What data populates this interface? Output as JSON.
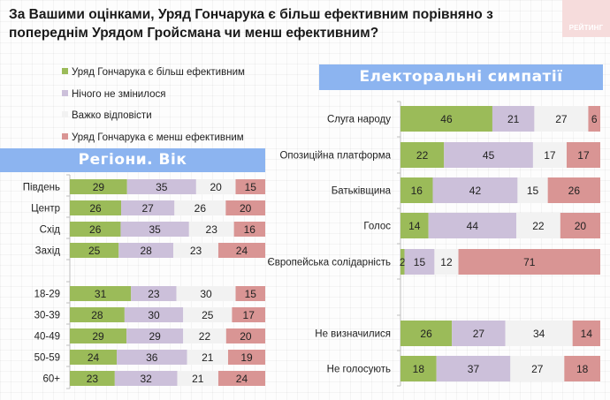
{
  "title": "За Вашими оцінками, Уряд Гончарука є більш ефективним порівняно з попереднім Урядом Гройсмана чи менш ефективним?",
  "logo": {
    "text": "РЕЙТИНГ",
    "icon": "rating-logo-icon"
  },
  "legend": [
    {
      "label": "Уряд Гончарука є більш ефективним",
      "color": "#9bbb59"
    },
    {
      "label": "Нічого не змінилося",
      "color": "#ccc0da"
    },
    {
      "label": "Важко відповісти",
      "color": "#f2f2f2"
    },
    {
      "label": "Уряд Гончарука є менш ефективним",
      "color": "#d99594"
    }
  ],
  "chart_data": [
    {
      "type": "bar",
      "orientation": "horizontal-stacked-100",
      "title": "Регіони. Вік",
      "categories": [
        "Південь",
        "Центр",
        "Схід",
        "Захід",
        "",
        "18-29",
        "30-39",
        "40-49",
        "50-59",
        "60+"
      ],
      "series": [
        {
          "name": "Уряд Гончарука є більш ефективним",
          "values": [
            29,
            26,
            26,
            25,
            null,
            31,
            28,
            29,
            24,
            23
          ]
        },
        {
          "name": "Нічого не змінилося",
          "values": [
            35,
            27,
            35,
            28,
            null,
            23,
            30,
            29,
            36,
            32
          ]
        },
        {
          "name": "Важко відповісти",
          "values": [
            20,
            26,
            23,
            23,
            null,
            30,
            25,
            22,
            21,
            21
          ]
        },
        {
          "name": "Уряд Гончарука є менш ефективним",
          "values": [
            15,
            20,
            16,
            24,
            null,
            15,
            17,
            20,
            19,
            24
          ]
        }
      ],
      "xlim": [
        0,
        100
      ],
      "legend": "top-left"
    },
    {
      "type": "bar",
      "orientation": "horizontal-stacked-100",
      "title": "Електоральні симпатії",
      "categories": [
        "Слуга народу",
        "Опозиційна платформа",
        "Батьківщина",
        "Голос",
        "Європейська солідарність",
        "",
        "Не визначилися",
        "Не голосують"
      ],
      "series": [
        {
          "name": "Уряд Гончарука є більш ефективним",
          "values": [
            46,
            22,
            16,
            14,
            2,
            null,
            26,
            18
          ]
        },
        {
          "name": "Нічого не змінилося",
          "values": [
            21,
            45,
            42,
            44,
            15,
            null,
            27,
            37
          ]
        },
        {
          "name": "Важко відповісти",
          "values": [
            27,
            17,
            15,
            22,
            12,
            null,
            34,
            27
          ]
        },
        {
          "name": "Уряд Гончарука є менш ефективним",
          "values": [
            6,
            17,
            26,
            20,
            71,
            null,
            14,
            18
          ]
        }
      ],
      "xlim": [
        0,
        100
      ]
    }
  ]
}
